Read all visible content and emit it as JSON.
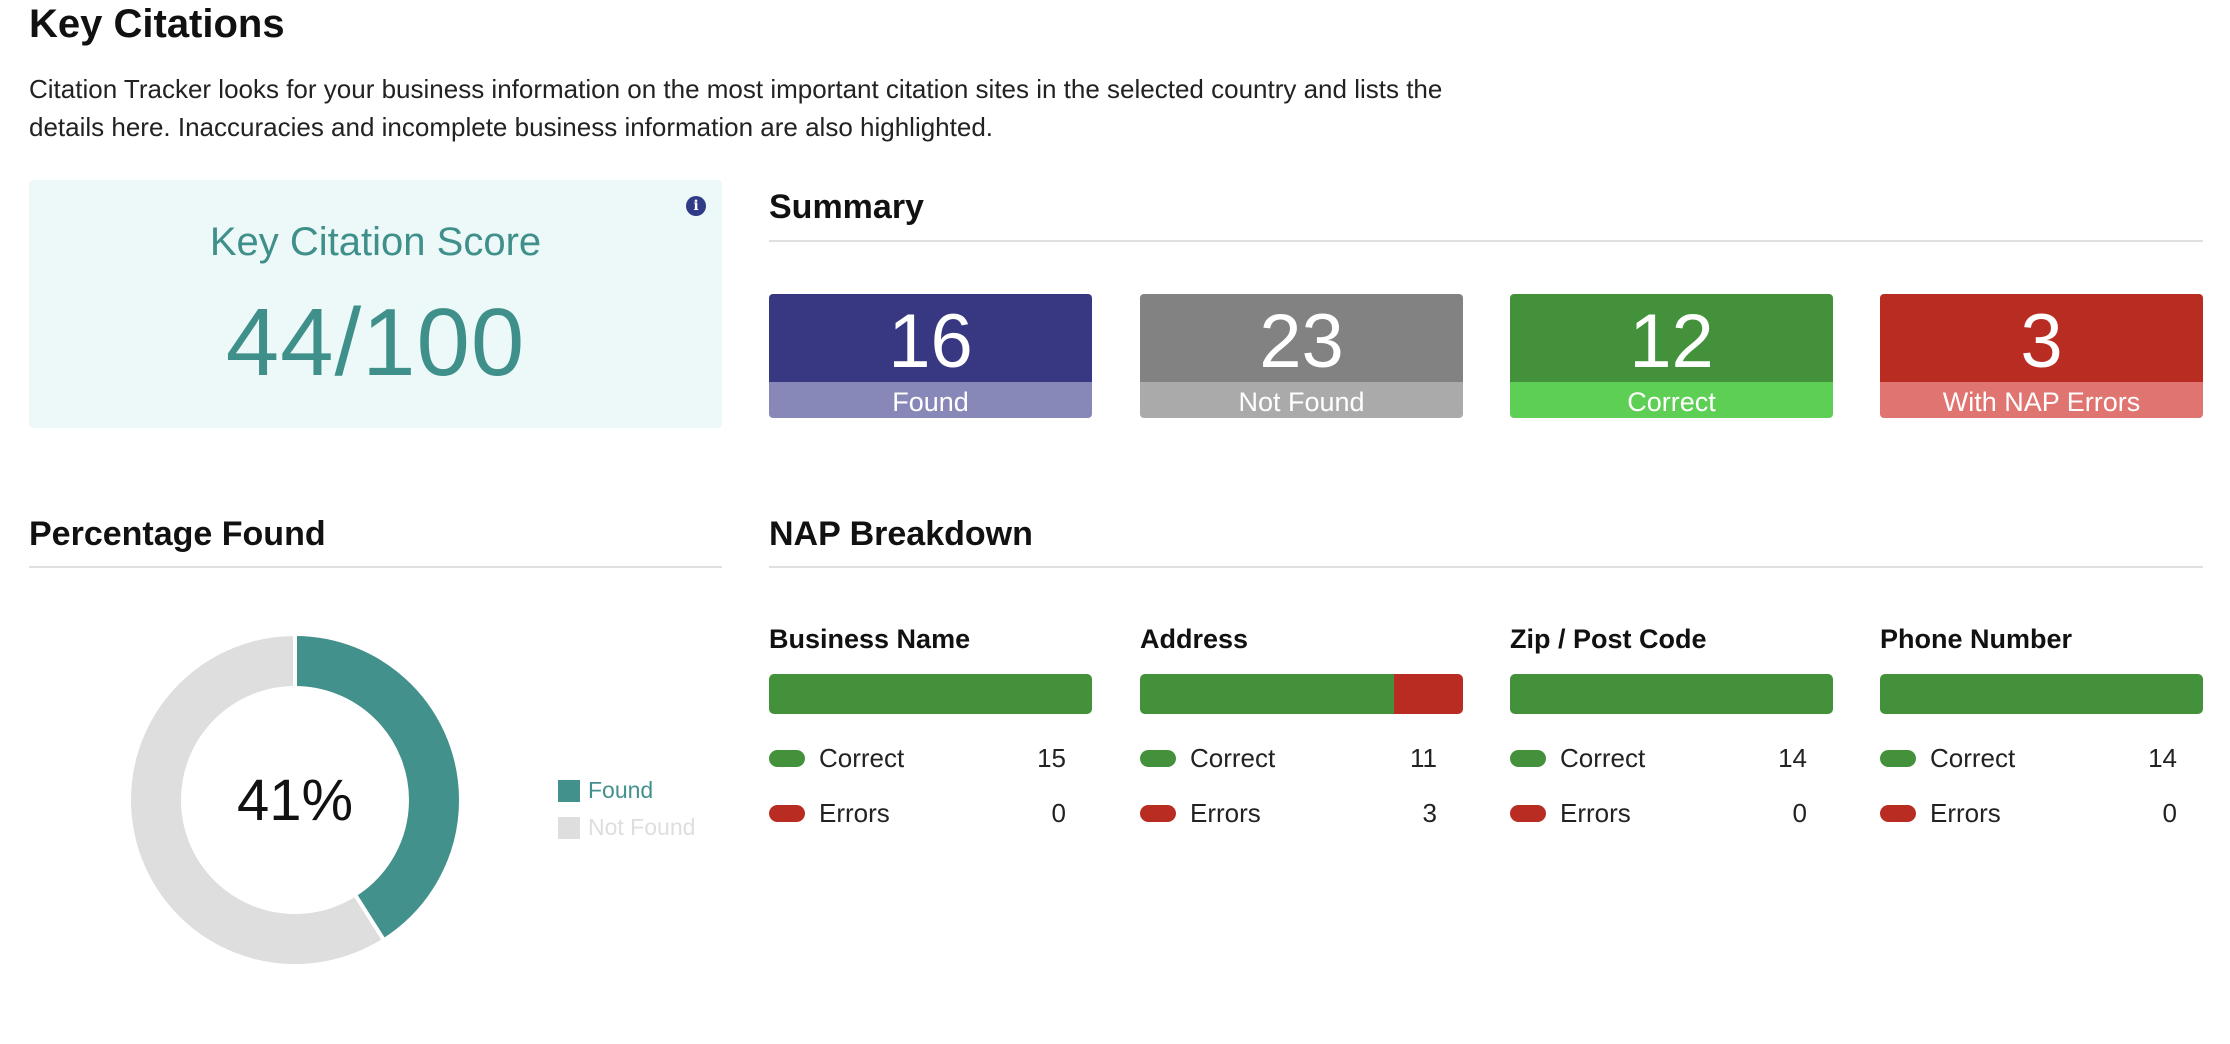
{
  "page": {
    "title": "Key Citations",
    "intro_line1": "Citation Tracker looks for your business information on the most important citation sites in the selected country and lists the",
    "intro_line2": "details here. Inaccuracies and incomplete business information are also highlighted."
  },
  "score": {
    "label": "Key Citation Score",
    "value": "44/100",
    "info_icon": "info-icon"
  },
  "summary": {
    "title": "Summary",
    "tiles": [
      {
        "value": "16",
        "label": "Found",
        "top_color": "#383882",
        "bottom_color": "#8888b8"
      },
      {
        "value": "23",
        "label": "Not Found",
        "top_color": "#828282",
        "bottom_color": "#aaaaaa"
      },
      {
        "value": "12",
        "label": "Correct",
        "top_color": "#43923b",
        "bottom_color": "#5ecf55"
      },
      {
        "value": "3",
        "label": "With NAP Errors",
        "top_color": "#b82c22",
        "bottom_color": "#e07470"
      }
    ]
  },
  "percentage": {
    "title": "Percentage Found",
    "center_label": "41%",
    "found_fraction": 0.41,
    "legend": [
      {
        "label": "Found",
        "color": "#43918c"
      },
      {
        "label": "Not Found",
        "color": "#dedede"
      }
    ]
  },
  "nap": {
    "title": "NAP Breakdown",
    "correct_color": "#43923b",
    "error_color": "#b82c22",
    "columns": [
      {
        "title": "Business Name",
        "correct_label": "Correct",
        "correct": "15",
        "errors_label": "Errors",
        "errors": "0"
      },
      {
        "title": "Address",
        "correct_label": "Correct",
        "correct": "11",
        "errors_label": "Errors",
        "errors": "3"
      },
      {
        "title": "Zip / Post Code",
        "correct_label": "Correct",
        "correct": "14",
        "errors_label": "Errors",
        "errors": "0"
      },
      {
        "title": "Phone Number",
        "correct_label": "Correct",
        "correct": "14",
        "errors_label": "Errors",
        "errors": "0"
      }
    ]
  }
}
